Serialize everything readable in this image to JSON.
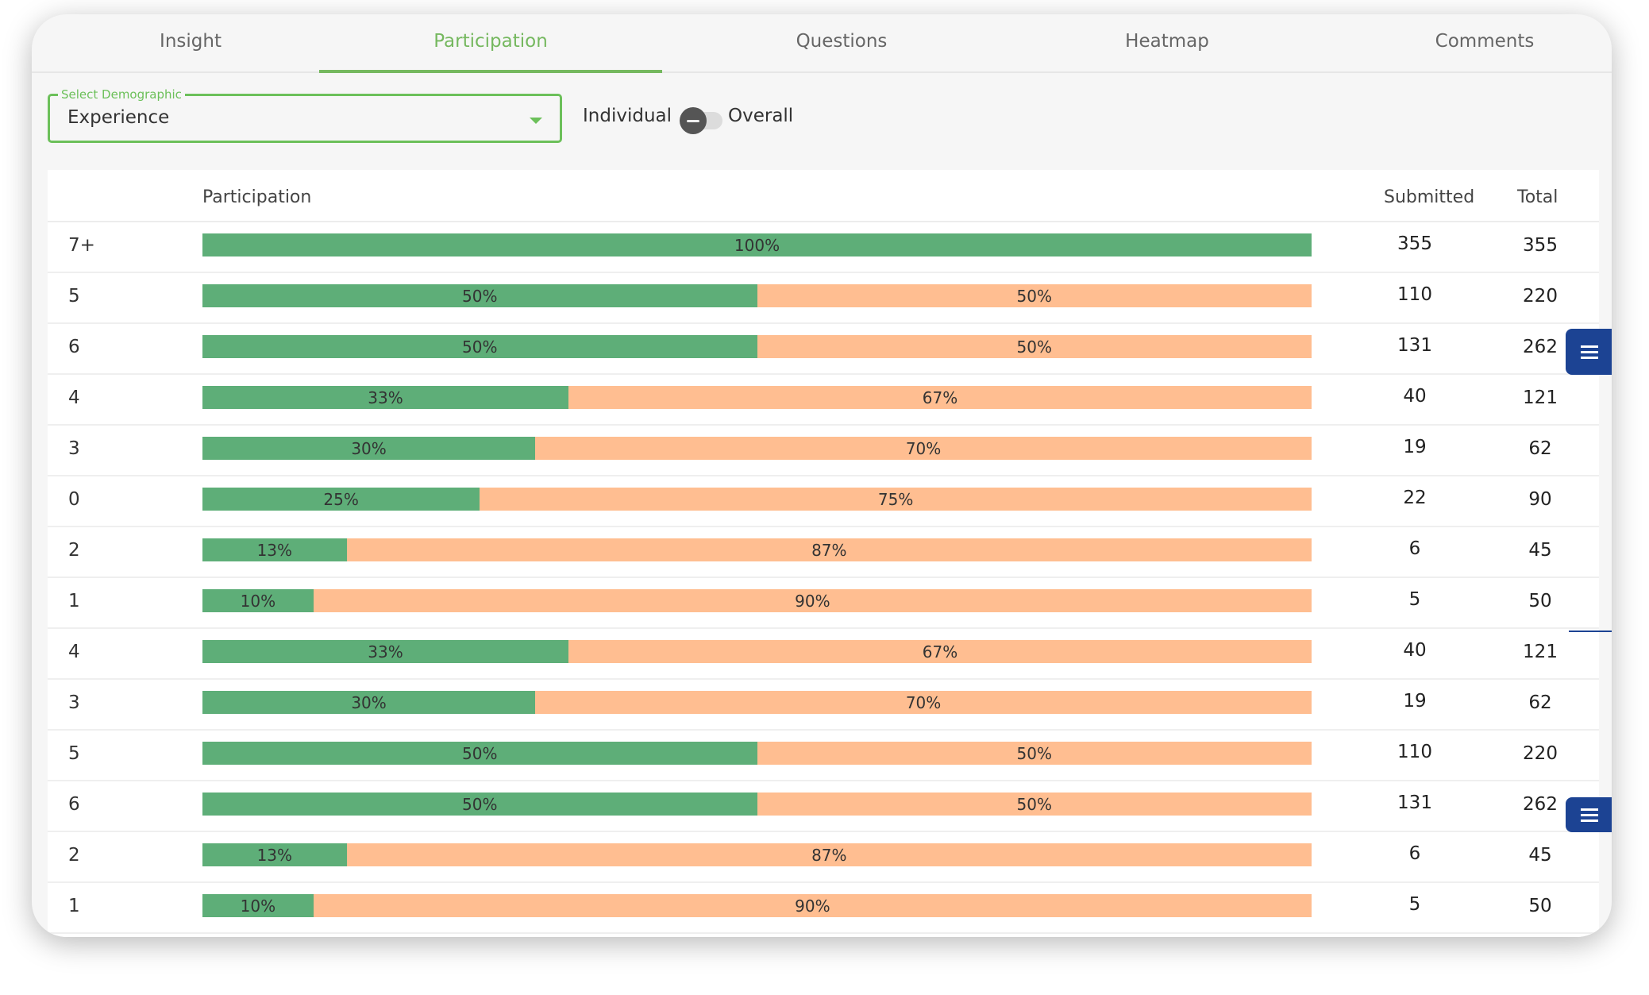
{
  "tabs": [
    "Insight",
    "Participation",
    "Questions",
    "Heatmap",
    "Comments"
  ],
  "active_tab": "Participation",
  "filter": {
    "legend": "Select Demographic",
    "value": "Experience",
    "toggle_left": "Individual",
    "toggle_right": "Overall"
  },
  "table": {
    "headers": {
      "participation": "Participation",
      "submitted": "Submitted",
      "total": "Total"
    },
    "rows": [
      {
        "label": "7+",
        "submitted_pct": 100,
        "pending_pct": 0,
        "submitted": "355",
        "total": "355"
      },
      {
        "label": "5",
        "submitted_pct": 50,
        "pending_pct": 50,
        "submitted": "110",
        "total": "220"
      },
      {
        "label": "6",
        "submitted_pct": 50,
        "pending_pct": 50,
        "submitted": "131",
        "total": "262"
      },
      {
        "label": "4",
        "submitted_pct": 33,
        "pending_pct": 67,
        "submitted": "40",
        "total": "121"
      },
      {
        "label": "3",
        "submitted_pct": 30,
        "pending_pct": 70,
        "submitted": "19",
        "total": "62"
      },
      {
        "label": "0",
        "submitted_pct": 25,
        "pending_pct": 75,
        "submitted": "22",
        "total": "90"
      },
      {
        "label": "2",
        "submitted_pct": 13,
        "pending_pct": 87,
        "submitted": "6",
        "total": "45"
      },
      {
        "label": "1",
        "submitted_pct": 10,
        "pending_pct": 90,
        "submitted": "5",
        "total": "50"
      },
      {
        "label": "4",
        "submitted_pct": 33,
        "pending_pct": 67,
        "submitted": "40",
        "total": "121"
      },
      {
        "label": "3",
        "submitted_pct": 30,
        "pending_pct": 70,
        "submitted": "19",
        "total": "62"
      },
      {
        "label": "5",
        "submitted_pct": 50,
        "pending_pct": 50,
        "submitted": "110",
        "total": "220"
      },
      {
        "label": "6",
        "submitted_pct": 50,
        "pending_pct": 50,
        "submitted": "131",
        "total": "262"
      },
      {
        "label": "2",
        "submitted_pct": 13,
        "pending_pct": 87,
        "submitted": "6",
        "total": "45"
      },
      {
        "label": "1",
        "submitted_pct": 10,
        "pending_pct": 90,
        "submitted": "5",
        "total": "50"
      }
    ]
  },
  "colors": {
    "accent": "#75b85f",
    "submitted_bar": "#5eae78",
    "pending_bar": "#ffbe91",
    "side_button": "#1c4393"
  },
  "side_buttons_icon": "menu-icon"
}
